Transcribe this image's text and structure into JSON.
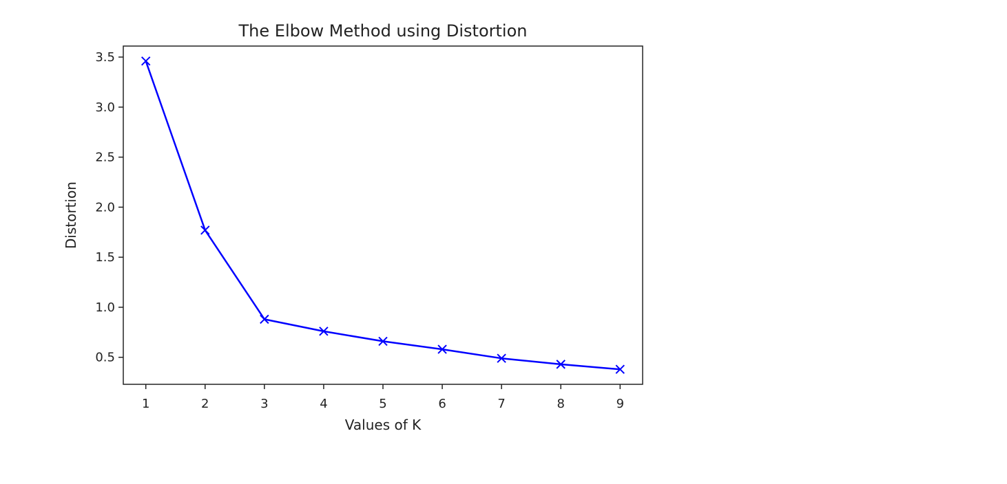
{
  "chart_data": {
    "type": "line",
    "title": "The Elbow Method using Distortion",
    "xlabel": "Values of K",
    "ylabel": "Distortion",
    "x": [
      1,
      2,
      3,
      4,
      5,
      6,
      7,
      8,
      9
    ],
    "series": [
      {
        "values": [
          3.46,
          1.77,
          0.88,
          0.76,
          0.66,
          0.58,
          0.49,
          0.43,
          0.38
        ],
        "color": "#0000ff",
        "line_style": "solid",
        "marker": "x"
      }
    ],
    "xlim": [
      0.62,
      9.38
    ],
    "ylim": [
      0.23,
      3.61
    ],
    "x_ticks": [
      1,
      2,
      3,
      4,
      5,
      6,
      7,
      8,
      9
    ],
    "y_ticks": [
      0.5,
      1.0,
      1.5,
      2.0,
      2.5,
      3.0,
      3.5
    ],
    "y_tick_labels": [
      "0.5",
      "1.0",
      "1.5",
      "2.0",
      "2.5",
      "3.0",
      "3.5"
    ],
    "grid": false,
    "legend": "none"
  }
}
